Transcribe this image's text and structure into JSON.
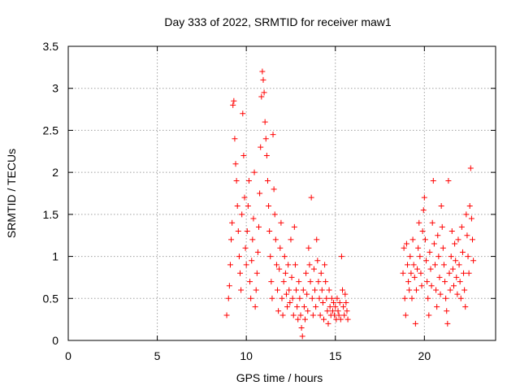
{
  "chart_data": {
    "type": "scatter",
    "title": "Day 333 of 2022, SRMTID for receiver maw1",
    "xlabel": "GPS time / hours",
    "ylabel": "SRMTID / TECUs",
    "xlim": [
      0,
      24
    ],
    "ylim": [
      0,
      3.5
    ],
    "xticks": [
      0,
      5,
      10,
      15,
      20
    ],
    "yticks": [
      0,
      0.5,
      1,
      1.5,
      2,
      2.5,
      3,
      3.5
    ],
    "xtick_labels": [
      "0",
      "5",
      "10",
      "15",
      "20"
    ],
    "ytick_labels": [
      "0",
      "0.5",
      "1",
      "1.5",
      "2",
      "2.5",
      "3",
      "3.5"
    ],
    "grid": true,
    "marker": "+",
    "series": [
      {
        "name": "SRMTID",
        "color": "#ff0000",
        "points": [
          [
            8.9,
            0.3
          ],
          [
            9.0,
            0.5
          ],
          [
            9.05,
            0.65
          ],
          [
            9.1,
            0.9
          ],
          [
            9.15,
            1.2
          ],
          [
            9.2,
            1.4
          ],
          [
            9.25,
            2.8
          ],
          [
            9.3,
            2.85
          ],
          [
            9.35,
            2.4
          ],
          [
            9.4,
            2.1
          ],
          [
            9.45,
            1.9
          ],
          [
            9.5,
            1.6
          ],
          [
            9.55,
            1.3
          ],
          [
            9.6,
            1.0
          ],
          [
            9.65,
            0.8
          ],
          [
            9.7,
            0.6
          ],
          [
            9.75,
            1.5
          ],
          [
            9.8,
            2.7
          ],
          [
            9.85,
            2.2
          ],
          [
            9.9,
            1.7
          ],
          [
            9.95,
            1.1
          ],
          [
            10.0,
            0.9
          ],
          [
            10.05,
            1.3
          ],
          [
            10.1,
            1.6
          ],
          [
            10.15,
            1.9
          ],
          [
            10.2,
            0.7
          ],
          [
            10.25,
            0.5
          ],
          [
            10.3,
            0.95
          ],
          [
            10.35,
            1.2
          ],
          [
            10.4,
            1.45
          ],
          [
            10.45,
            2.0
          ],
          [
            10.5,
            0.4
          ],
          [
            10.55,
            0.6
          ],
          [
            10.6,
            0.8
          ],
          [
            10.65,
            1.05
          ],
          [
            10.7,
            1.35
          ],
          [
            10.75,
            1.75
          ],
          [
            10.8,
            2.3
          ],
          [
            10.85,
            2.9
          ],
          [
            10.9,
            3.2
          ],
          [
            10.95,
            3.1
          ],
          [
            11.0,
            2.95
          ],
          [
            11.05,
            2.6
          ],
          [
            11.1,
            2.4
          ],
          [
            11.15,
            2.2
          ],
          [
            11.2,
            1.9
          ],
          [
            11.25,
            1.6
          ],
          [
            11.3,
            1.3
          ],
          [
            11.35,
            1.0
          ],
          [
            11.4,
            0.7
          ],
          [
            11.45,
            0.5
          ],
          [
            11.5,
            2.45
          ],
          [
            11.55,
            1.8
          ],
          [
            11.6,
            1.5
          ],
          [
            11.65,
            1.2
          ],
          [
            11.7,
            0.9
          ],
          [
            11.75,
            0.6
          ],
          [
            11.8,
            0.35
          ],
          [
            11.85,
            0.85
          ],
          [
            11.9,
            1.1
          ],
          [
            11.95,
            1.4
          ],
          [
            12.0,
            0.5
          ],
          [
            12.05,
            0.3
          ],
          [
            12.1,
            0.7
          ],
          [
            12.15,
            1.0
          ],
          [
            12.2,
            0.8
          ],
          [
            12.25,
            0.55
          ],
          [
            12.3,
            0.4
          ],
          [
            12.35,
            0.9
          ],
          [
            12.4,
            0.6
          ],
          [
            12.45,
            0.45
          ],
          [
            12.5,
            1.2
          ],
          [
            12.55,
            0.75
          ],
          [
            12.6,
            0.5
          ],
          [
            12.65,
            0.3
          ],
          [
            12.7,
            1.35
          ],
          [
            12.75,
            0.9
          ],
          [
            12.8,
            0.6
          ],
          [
            12.85,
            0.4
          ],
          [
            12.9,
            0.25
          ],
          [
            12.95,
            0.7
          ],
          [
            13.0,
            0.5
          ],
          [
            13.05,
            0.3
          ],
          [
            13.1,
            0.15
          ],
          [
            13.15,
            0.05
          ],
          [
            13.2,
            0.6
          ],
          [
            13.25,
            0.4
          ],
          [
            13.3,
            0.25
          ],
          [
            13.35,
            0.8
          ],
          [
            13.4,
            0.55
          ],
          [
            13.45,
            0.35
          ],
          [
            13.5,
            1.1
          ],
          [
            13.55,
            0.9
          ],
          [
            13.6,
            0.7
          ],
          [
            13.65,
            1.7
          ],
          [
            13.7,
            0.5
          ],
          [
            13.75,
            0.3
          ],
          [
            13.8,
            0.85
          ],
          [
            13.85,
            0.6
          ],
          [
            13.9,
            0.4
          ],
          [
            13.95,
            1.2
          ],
          [
            14.0,
            0.95
          ],
          [
            14.05,
            0.7
          ],
          [
            14.1,
            0.5
          ],
          [
            14.15,
            0.3
          ],
          [
            14.2,
            0.8
          ],
          [
            14.25,
            0.6
          ],
          [
            14.3,
            0.45
          ],
          [
            14.35,
            0.25
          ],
          [
            14.4,
            0.9
          ],
          [
            14.45,
            0.7
          ],
          [
            14.5,
            0.5
          ],
          [
            14.55,
            0.35
          ],
          [
            14.6,
            0.2
          ],
          [
            14.65,
            0.6
          ],
          [
            14.7,
            0.4
          ],
          [
            14.75,
            0.3
          ],
          [
            14.8,
            0.5
          ],
          [
            14.85,
            0.35
          ],
          [
            14.9,
            0.45
          ],
          [
            14.95,
            0.3
          ],
          [
            15.0,
            0.4
          ],
          [
            15.05,
            0.25
          ],
          [
            15.1,
            0.5
          ],
          [
            15.15,
            0.35
          ],
          [
            15.2,
            0.3
          ],
          [
            15.25,
            0.45
          ],
          [
            15.3,
            0.25
          ],
          [
            15.35,
            1.0
          ],
          [
            15.4,
            0.6
          ],
          [
            15.45,
            0.4
          ],
          [
            15.5,
            0.3
          ],
          [
            15.55,
            0.55
          ],
          [
            15.6,
            0.45
          ],
          [
            15.65,
            0.35
          ],
          [
            15.7,
            0.25
          ],
          [
            18.8,
            0.8
          ],
          [
            18.85,
            1.1
          ],
          [
            18.9,
            0.5
          ],
          [
            18.95,
            0.3
          ],
          [
            19.0,
            1.15
          ],
          [
            19.05,
            0.9
          ],
          [
            19.1,
            0.7
          ],
          [
            19.15,
            0.6
          ],
          [
            19.2,
            1.0
          ],
          [
            19.25,
            0.8
          ],
          [
            19.3,
            0.5
          ],
          [
            19.35,
            1.2
          ],
          [
            19.4,
            0.9
          ],
          [
            19.45,
            0.75
          ],
          [
            19.5,
            0.2
          ],
          [
            19.55,
            0.6
          ],
          [
            19.6,
            0.85
          ],
          [
            19.65,
            1.1
          ],
          [
            19.7,
            1.4
          ],
          [
            19.75,
            1.0
          ],
          [
            19.8,
            0.8
          ],
          [
            19.85,
            0.65
          ],
          [
            19.9,
            1.3
          ],
          [
            19.95,
            1.55
          ],
          [
            20.0,
            1.7
          ],
          [
            20.05,
            1.2
          ],
          [
            20.1,
            0.95
          ],
          [
            20.15,
            0.7
          ],
          [
            20.2,
            0.5
          ],
          [
            20.25,
            0.3
          ],
          [
            20.3,
            1.05
          ],
          [
            20.35,
            0.85
          ],
          [
            20.4,
            0.65
          ],
          [
            20.45,
            1.4
          ],
          [
            20.5,
            1.9
          ],
          [
            20.55,
            1.15
          ],
          [
            20.6,
            0.9
          ],
          [
            20.65,
            0.6
          ],
          [
            20.7,
            0.4
          ],
          [
            20.75,
            1.25
          ],
          [
            20.8,
            1.0
          ],
          [
            20.85,
            0.75
          ],
          [
            20.9,
            0.55
          ],
          [
            20.95,
            1.6
          ],
          [
            21.0,
            1.35
          ],
          [
            21.05,
            1.1
          ],
          [
            21.1,
            0.9
          ],
          [
            21.15,
            0.7
          ],
          [
            21.2,
            0.5
          ],
          [
            21.25,
            0.35
          ],
          [
            21.3,
            0.2
          ],
          [
            21.35,
            1.9
          ],
          [
            21.4,
            0.8
          ],
          [
            21.45,
            0.6
          ],
          [
            21.5,
            1.0
          ],
          [
            21.55,
            1.3
          ],
          [
            21.6,
            0.85
          ],
          [
            21.65,
            0.65
          ],
          [
            21.7,
            1.15
          ],
          [
            21.75,
            0.95
          ],
          [
            21.8,
            0.75
          ],
          [
            21.85,
            0.55
          ],
          [
            21.9,
            1.2
          ],
          [
            21.95,
            0.9
          ],
          [
            22.0,
            0.7
          ],
          [
            22.05,
            0.5
          ],
          [
            22.1,
            1.35
          ],
          [
            22.15,
            1.05
          ],
          [
            22.2,
            0.8
          ],
          [
            22.25,
            0.6
          ],
          [
            22.3,
            0.4
          ],
          [
            22.35,
            1.5
          ],
          [
            22.4,
            1.25
          ],
          [
            22.45,
            1.0
          ],
          [
            22.5,
            0.8
          ],
          [
            22.55,
            1.6
          ],
          [
            22.6,
            2.05
          ],
          [
            22.65,
            1.45
          ],
          [
            22.7,
            1.2
          ],
          [
            22.75,
            0.95
          ]
        ]
      }
    ]
  }
}
